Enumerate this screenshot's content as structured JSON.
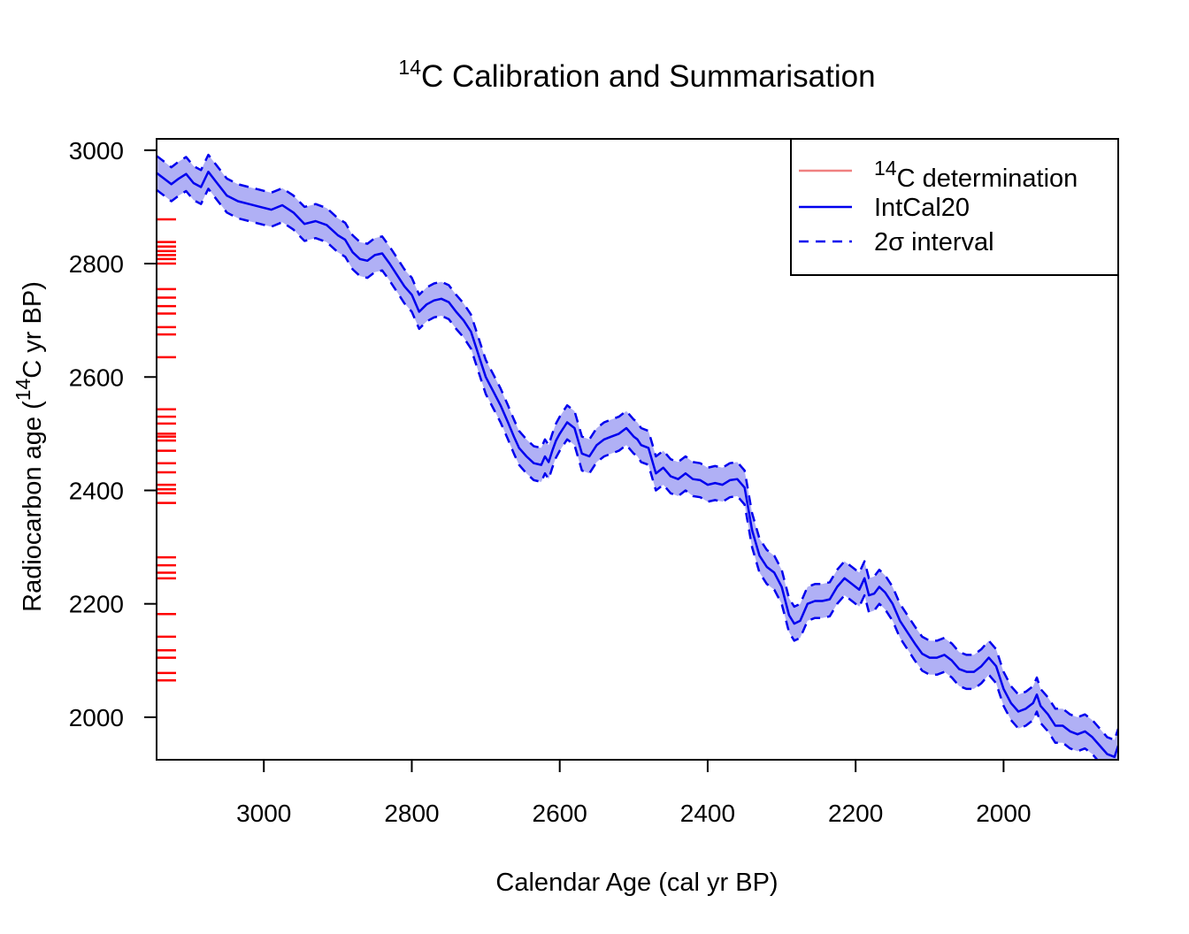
{
  "chart_data": {
    "type": "line",
    "title": {
      "superscript": "14",
      "text": "C Calibration and Summarisation"
    },
    "xlabel": "Calendar Age (cal yr BP)",
    "ylabel": {
      "before": "Radiocarbon age (",
      "superscript": "14",
      "after": "C yr BP)"
    },
    "xlim": [
      3145,
      1845
    ],
    "ylim": [
      1925,
      3020
    ],
    "x_reversed": true,
    "xticks": [
      3000,
      2800,
      2600,
      2400,
      2200,
      2000
    ],
    "yticks": [
      3000,
      2800,
      2600,
      2400,
      2200,
      2000
    ],
    "grid": false,
    "legend_position": "top-right",
    "legend": [
      {
        "superscript": "14",
        "label": "C determination",
        "color": "#f08080",
        "style": "solid"
      },
      {
        "superscript": "",
        "label": "IntCal20",
        "color": "#0000ee",
        "style": "solid"
      },
      {
        "superscript": "",
        "label": "2σ interval",
        "color": "#0000ee",
        "style": "dashed"
      }
    ],
    "colors": {
      "curve": "#0000ee",
      "band": "#b0b0f5",
      "determinations": "#ff0000"
    },
    "series": [
      {
        "name": "IntCal20",
        "x": [
          3145,
          3135,
          3125,
          3115,
          3105,
          3095,
          3085,
          3075,
          3065,
          3050,
          3035,
          3020,
          3005,
          2990,
          2975,
          2960,
          2945,
          2930,
          2915,
          2900,
          2890,
          2880,
          2870,
          2860,
          2850,
          2840,
          2830,
          2820,
          2810,
          2800,
          2790,
          2780,
          2770,
          2760,
          2750,
          2740,
          2730,
          2720,
          2710,
          2700,
          2690,
          2680,
          2670,
          2662,
          2655,
          2645,
          2635,
          2625,
          2620,
          2615,
          2610,
          2605,
          2600,
          2590,
          2580,
          2570,
          2560,
          2550,
          2540,
          2530,
          2520,
          2510,
          2500,
          2495,
          2490,
          2480,
          2470,
          2460,
          2450,
          2440,
          2430,
          2420,
          2410,
          2400,
          2390,
          2380,
          2370,
          2360,
          2350,
          2340,
          2330,
          2320,
          2310,
          2300,
          2290,
          2283,
          2275,
          2265,
          2255,
          2245,
          2235,
          2225,
          2215,
          2205,
          2195,
          2188,
          2182,
          2175,
          2168,
          2160,
          2150,
          2140,
          2130,
          2120,
          2110,
          2100,
          2090,
          2080,
          2070,
          2060,
          2050,
          2040,
          2030,
          2020,
          2010,
          2000,
          1990,
          1980,
          1970,
          1960,
          1955,
          1950,
          1940,
          1930,
          1920,
          1910,
          1900,
          1890,
          1880,
          1870,
          1860,
          1850,
          1845
        ],
        "y": [
          2960,
          2950,
          2940,
          2950,
          2958,
          2942,
          2935,
          2962,
          2945,
          2920,
          2910,
          2905,
          2900,
          2895,
          2903,
          2890,
          2870,
          2875,
          2868,
          2850,
          2842,
          2820,
          2808,
          2805,
          2815,
          2818,
          2800,
          2780,
          2760,
          2745,
          2715,
          2728,
          2735,
          2738,
          2732,
          2715,
          2700,
          2680,
          2640,
          2600,
          2575,
          2550,
          2520,
          2495,
          2475,
          2460,
          2448,
          2445,
          2460,
          2450,
          2470,
          2488,
          2500,
          2520,
          2510,
          2465,
          2460,
          2480,
          2490,
          2495,
          2500,
          2510,
          2495,
          2490,
          2480,
          2475,
          2430,
          2440,
          2425,
          2420,
          2430,
          2420,
          2418,
          2410,
          2413,
          2410,
          2418,
          2420,
          2405,
          2330,
          2285,
          2265,
          2255,
          2230,
          2180,
          2165,
          2170,
          2200,
          2205,
          2205,
          2208,
          2230,
          2245,
          2235,
          2225,
          2245,
          2215,
          2218,
          2230,
          2220,
          2200,
          2170,
          2150,
          2130,
          2112,
          2105,
          2105,
          2110,
          2100,
          2085,
          2080,
          2080,
          2090,
          2105,
          2090,
          2050,
          2025,
          2010,
          2015,
          2025,
          2040,
          2020,
          2005,
          1985,
          1985,
          1975,
          1970,
          1975,
          1965,
          1950,
          1935,
          1930,
          1950
        ]
      }
    ],
    "band_halfwidth": 30,
    "determinations": [
      2878,
      2838,
      2830,
      2822,
      2815,
      2808,
      2800,
      2755,
      2740,
      2725,
      2712,
      2688,
      2675,
      2635,
      2543,
      2530,
      2518,
      2500,
      2495,
      2488,
      2470,
      2448,
      2432,
      2410,
      2402,
      2395,
      2378,
      2282,
      2268,
      2255,
      2245,
      2182,
      2142,
      2118,
      2105,
      2078,
      2065
    ]
  }
}
